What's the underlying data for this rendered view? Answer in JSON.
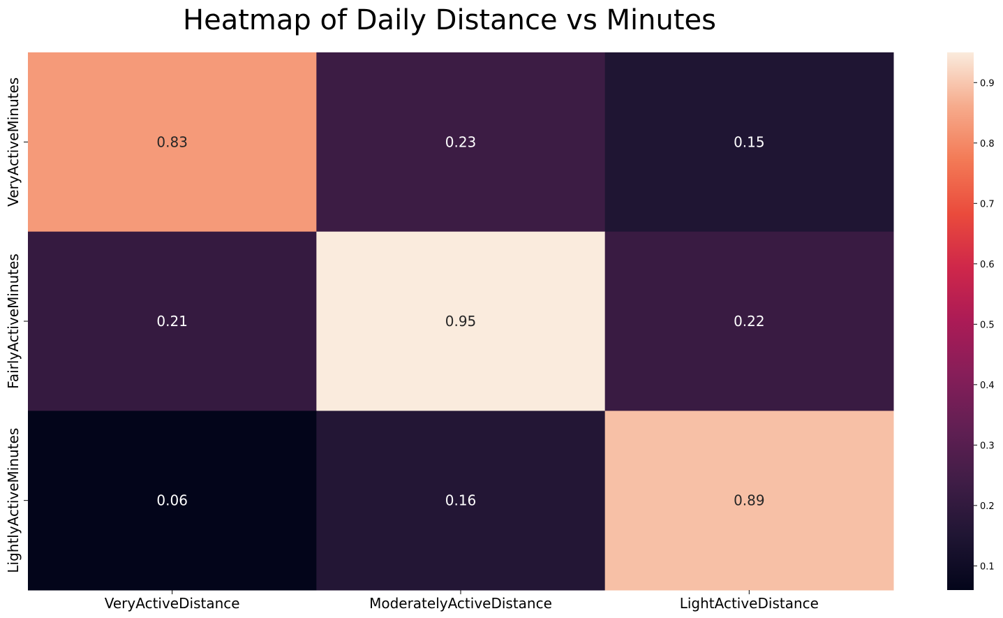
{
  "chart_data": {
    "type": "heatmap",
    "title": "Heatmap of Daily Distance vs Minutes",
    "x_categories": [
      "VeryActiveDistance",
      "ModeratelyActiveDistance",
      "LightActiveDistance"
    ],
    "y_categories": [
      "VeryActiveMinutes",
      "FairlyActiveMinutes",
      "LightlyActiveMinutes"
    ],
    "values": [
      [
        0.83,
        0.23,
        0.15
      ],
      [
        0.21,
        0.95,
        0.22
      ],
      [
        0.06,
        0.16,
        0.89
      ]
    ],
    "cell_labels": [
      [
        "0.83",
        "0.23",
        "0.15"
      ],
      [
        "0.21",
        "0.95",
        "0.22"
      ],
      [
        "0.06",
        "0.16",
        "0.89"
      ]
    ],
    "colormap": "rocket",
    "colorbar": {
      "range": [
        0.06,
        0.95
      ],
      "ticks": [
        0.1,
        0.2,
        0.3,
        0.4,
        0.5,
        0.6,
        0.7,
        0.8,
        0.9
      ],
      "tick_labels": [
        "0.1",
        "0.2",
        "0.3",
        "0.4",
        "0.5",
        "0.6",
        "0.7",
        "0.8",
        "0.9"
      ]
    },
    "xlabel": "",
    "ylabel": ""
  }
}
